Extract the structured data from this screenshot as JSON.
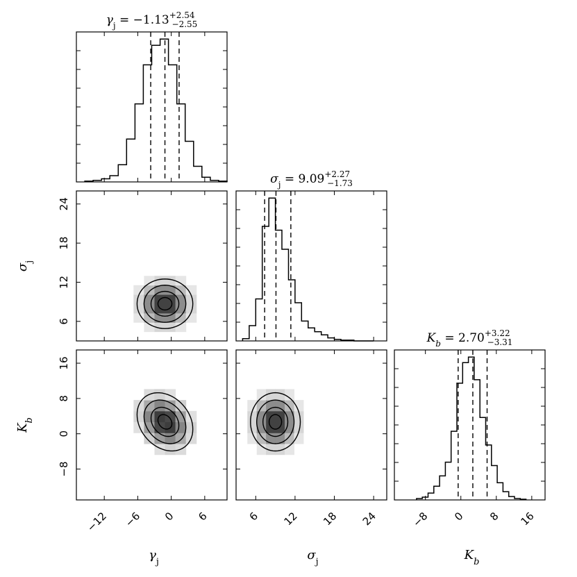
{
  "chart_data": {
    "type": "corner",
    "parameters": [
      {
        "id": "gamma",
        "label": "γ",
        "sub": "j",
        "title_value": "−1.13",
        "err_up": "+2.54",
        "err_down": "−2.55",
        "range": [
          -17,
          10
        ],
        "ticks": [
          -12,
          -6,
          0,
          6
        ],
        "tick_labels": [
          "−12",
          "−6",
          "0",
          "6"
        ],
        "quantiles": [
          -3.68,
          -1.13,
          1.41
        ]
      },
      {
        "id": "sigma",
        "label": "σ",
        "sub": "j",
        "title_value": "9.09",
        "err_up": "+2.27",
        "err_down": "−1.73",
        "range": [
          3,
          26
        ],
        "ticks": [
          6,
          12,
          18,
          24
        ],
        "tick_labels": [
          "6",
          "12",
          "18",
          "24"
        ],
        "quantiles": [
          7.36,
          9.09,
          11.36
        ]
      },
      {
        "id": "kb",
        "label": "K",
        "sub": "b",
        "title_value": "2.70",
        "err_up": "+3.22",
        "err_down": "−3.31",
        "range": [
          -15,
          19
        ],
        "ticks": [
          -8,
          0,
          8,
          16
        ],
        "tick_labels": [
          "−8",
          "0",
          "8",
          "16"
        ],
        "quantiles": [
          -0.61,
          2.7,
          5.92
        ]
      }
    ],
    "histograms": [
      {
        "param": "gamma",
        "edges": [
          -15.5,
          -14,
          -12.5,
          -11,
          -9.5,
          -8,
          -6.5,
          -5,
          -3.5,
          -2,
          -0.5,
          1,
          2.5,
          4,
          5.5,
          7,
          8.5,
          10
        ],
        "counts": [
          1,
          2,
          4,
          8,
          22,
          55,
          100,
          150,
          175,
          183,
          150,
          100,
          52,
          20,
          6,
          2,
          1
        ]
      },
      {
        "param": "sigma",
        "edges": [
          4,
          5,
          6,
          7,
          8,
          9,
          10,
          11,
          12,
          13,
          14,
          15,
          16,
          17,
          18,
          19,
          20,
          21,
          22,
          24
        ],
        "counts": [
          3,
          20,
          55,
          150,
          187,
          145,
          120,
          80,
          50,
          26,
          17,
          12,
          8,
          4,
          2,
          1,
          1,
          0,
          0
        ]
      },
      {
        "param": "kb",
        "edges": [
          -10,
          -8.7,
          -7.4,
          -6.1,
          -4.8,
          -3.5,
          -2.2,
          -0.9,
          0.4,
          1.7,
          3.0,
          4.3,
          5.6,
          6.9,
          8.2,
          9.5,
          10.8,
          12.1,
          13.4,
          14.7
        ],
        "counts": [
          2,
          4,
          10,
          20,
          35,
          55,
          100,
          170,
          200,
          208,
          175,
          120,
          80,
          50,
          25,
          12,
          5,
          2,
          1
        ]
      }
    ],
    "joint": [
      {
        "x": "gamma",
        "y": "sigma",
        "center": [
          -1.13,
          8.7
        ],
        "sx": 2.5,
        "sy": 1.9,
        "rho": 0.0
      },
      {
        "x": "gamma",
        "y": "kb",
        "center": [
          -1.13,
          2.7
        ],
        "sx": 2.5,
        "sy": 3.3,
        "rho": -0.25
      },
      {
        "x": "sigma",
        "y": "kb",
        "center": [
          9.0,
          2.7
        ],
        "sx": 1.9,
        "sy": 3.3,
        "rho": 0.0
      }
    ]
  }
}
